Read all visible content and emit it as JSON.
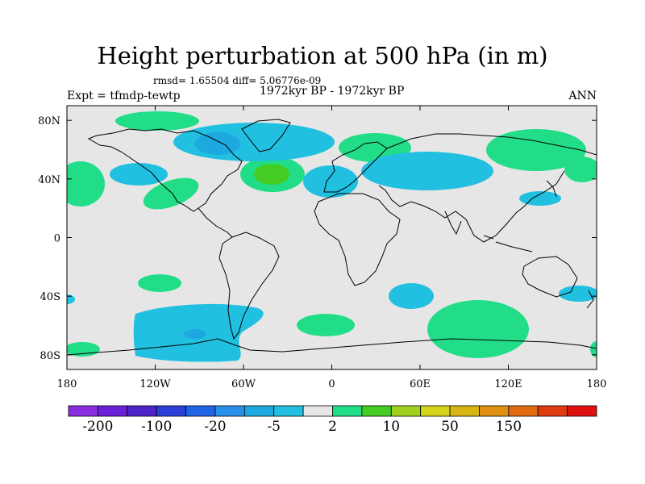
{
  "header": {
    "title": "Height perturbation at 500 hPa (in m)",
    "stats": "rmsd= 1.65504 diff= 5.06776e-09",
    "period": "1972kyr BP - 1972kyr BP",
    "experiment": "Expt = tfmdp-tewtp",
    "season": "ANN"
  },
  "axes": {
    "x_ticks": [
      "180",
      "120W",
      "60W",
      "0",
      "60E",
      "120E",
      "180"
    ],
    "x_values": [
      -180,
      -120,
      -60,
      0,
      60,
      120,
      180
    ],
    "y_ticks": [
      "80N",
      "40N",
      "0",
      "40S",
      "80S"
    ],
    "y_values": [
      80,
      40,
      0,
      -40,
      -80
    ]
  },
  "colorbar": {
    "colors": [
      "#8a2be2",
      "#6a1fd8",
      "#4b23c8",
      "#2b3fd8",
      "#1f63e6",
      "#2a8fe8",
      "#1ea8e0",
      "#21bfe0",
      "#e6e6e6",
      "#22dd88",
      "#44cc22",
      "#a0d11e",
      "#d4d41a",
      "#d9b514",
      "#e09010",
      "#e06a10",
      "#e03a10",
      "#e01010"
    ],
    "labels": [
      "-200",
      "-100",
      "-20",
      "-5",
      "2",
      "10",
      "50",
      "150"
    ]
  },
  "colors": {
    "background": "#e6e6e6",
    "negative_small": "#21bfe0",
    "negative_mid": "#1ea8e0",
    "positive_small": "#22dd88",
    "positive_mid": "#44cc22"
  }
}
